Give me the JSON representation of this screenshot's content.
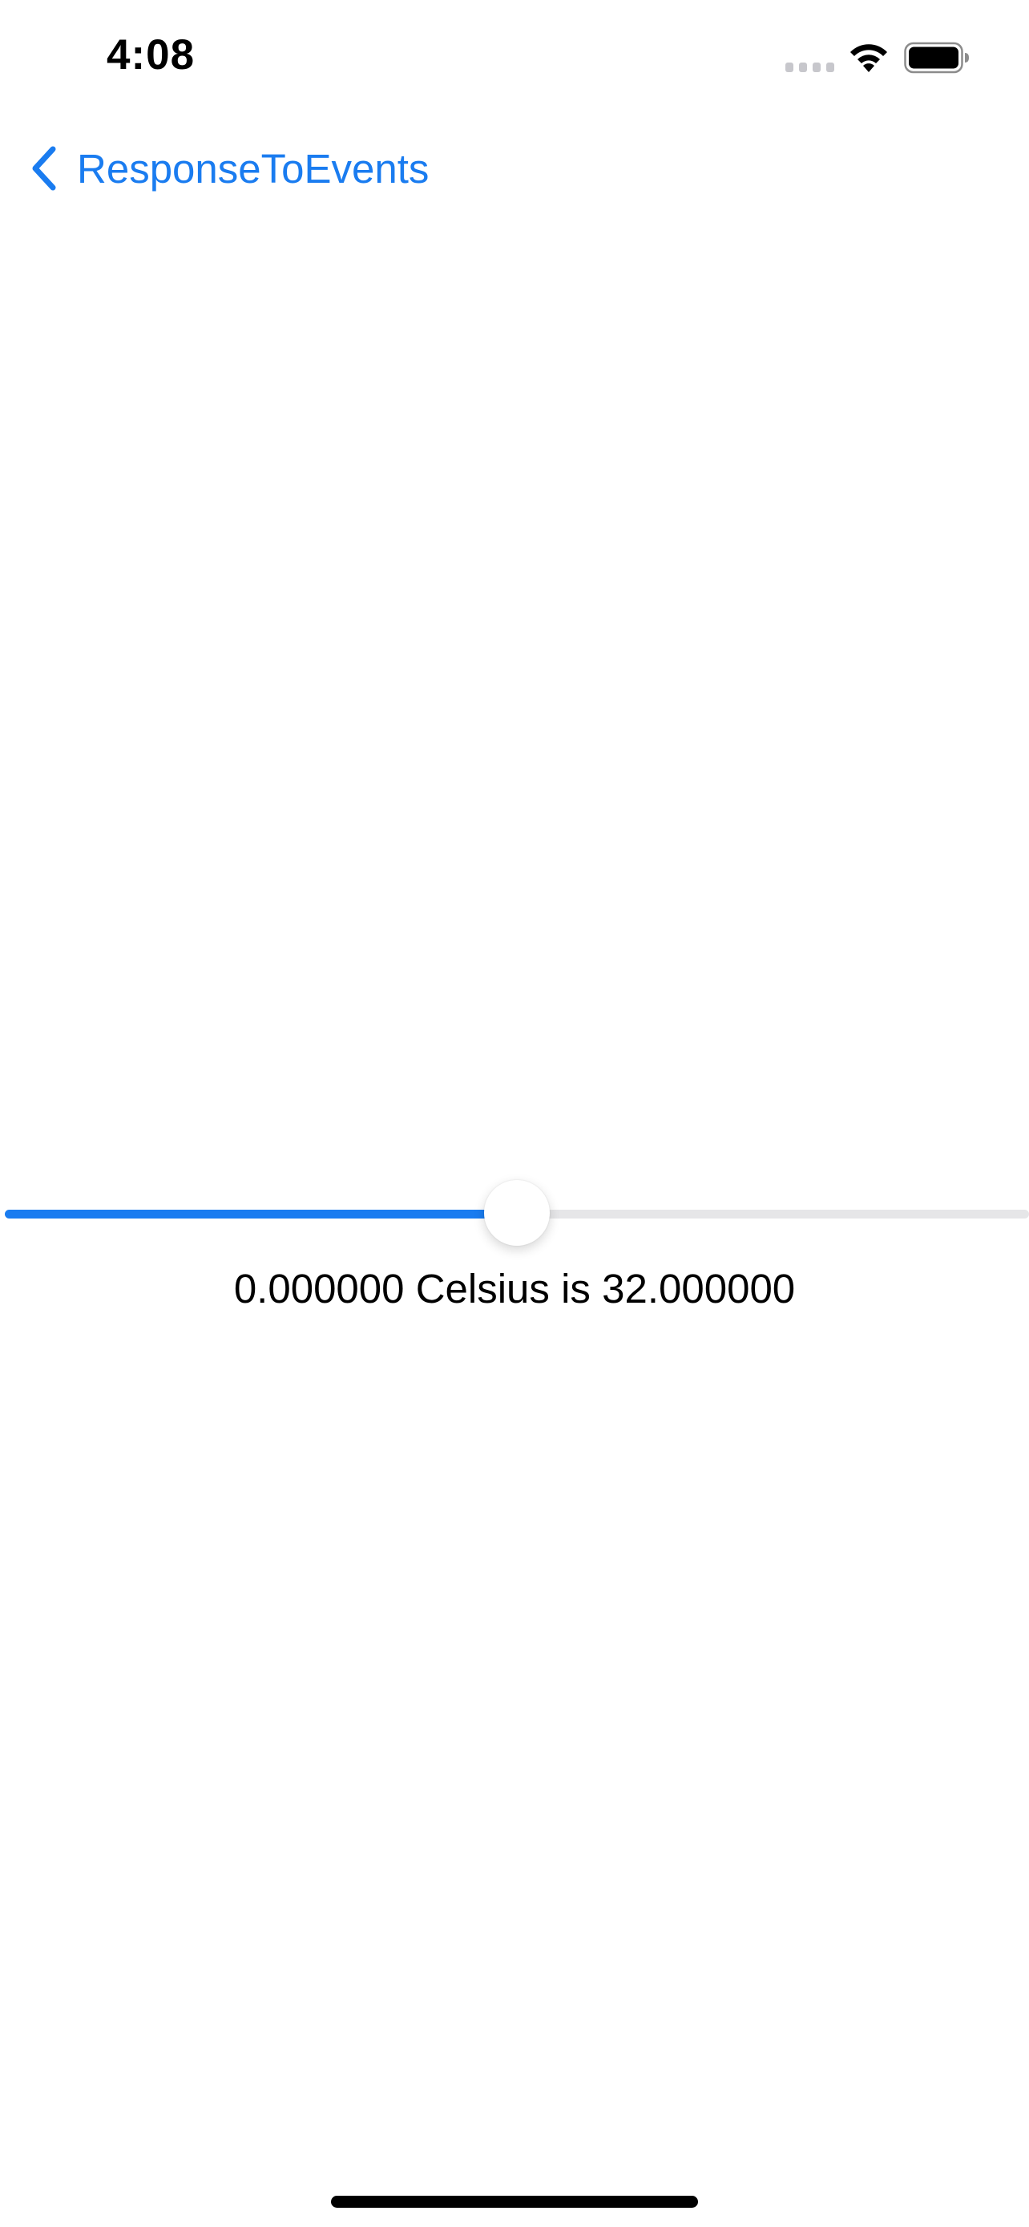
{
  "status_bar": {
    "time": "4:08",
    "icons": [
      "cellular-signal-icon",
      "wifi-icon",
      "battery-icon"
    ]
  },
  "nav": {
    "back_label": "ResponseToEvents",
    "back_icon": "chevron-left-icon"
  },
  "slider": {
    "value_fraction": 0.5
  },
  "conversion": {
    "text": "0.000000 Celsius is 32.000000"
  },
  "colors": {
    "accent": "#1a7cf0",
    "track": "#e6e6e8",
    "text": "#000000",
    "background": "#ffffff"
  }
}
